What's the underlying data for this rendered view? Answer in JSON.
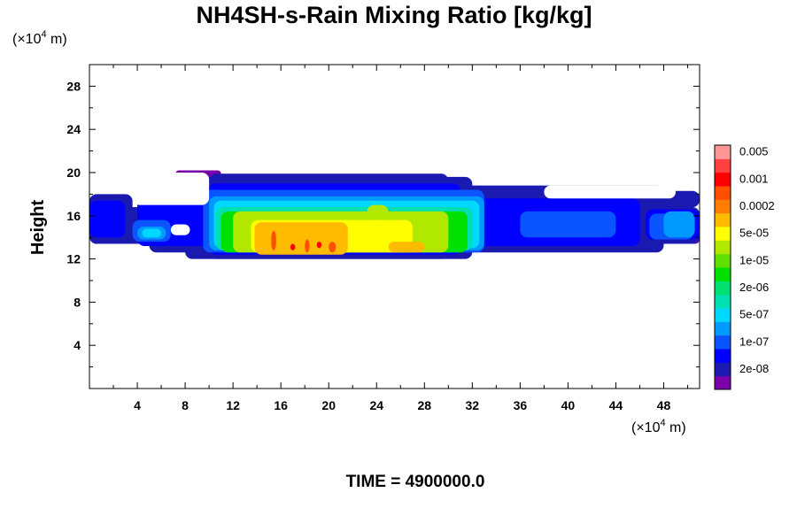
{
  "chart_data": {
    "type": "heatmap",
    "title": "NH4SH-s-Rain Mixing Ratio [kg/kg]",
    "ylabel": "Height",
    "x_unit": {
      "prefix": "(×10",
      "exponent": "4",
      "suffix": " m)"
    },
    "y_unit": {
      "prefix": "(×10",
      "exponent": "4",
      "suffix": " m)"
    },
    "xlim": [
      0,
      51
    ],
    "ylim": [
      0,
      30
    ],
    "x_ticks": [
      4,
      8,
      12,
      16,
      20,
      24,
      28,
      32,
      36,
      40,
      44,
      48
    ],
    "y_ticks": [
      4,
      8,
      12,
      16,
      20,
      24,
      28
    ],
    "time_label": "TIME = 4900000.0",
    "colorbar": {
      "colors": [
        "#7a00a8",
        "#1a1ab0",
        "#0000ff",
        "#0a55ff",
        "#009aff",
        "#00d8ff",
        "#00e0b0",
        "#00e070",
        "#00e000",
        "#60e000",
        "#b0e800",
        "#ffff00",
        "#ffbb00",
        "#ff7d00",
        "#ff5000",
        "#ff0000",
        "#ff4040",
        "#ff9696"
      ],
      "labels": [
        {
          "text": "2e-08",
          "level": 1
        },
        {
          "text": "1e-07",
          "level": 3
        },
        {
          "text": "5e-07",
          "level": 5
        },
        {
          "text": "2e-06",
          "level": 7
        },
        {
          "text": "1e-05",
          "level": 9
        },
        {
          "text": "5e-05",
          "level": 11
        },
        {
          "text": "0.0002",
          "level": 13
        },
        {
          "text": "0.001",
          "level": 15
        },
        {
          "text": "0.005",
          "level": 17
        }
      ]
    },
    "field": {
      "layers": [
        {
          "name": "purple-fringe",
          "level": 0,
          "regions": [
            {
              "x": [
                13.4,
                51
              ],
              "y": [
                13.4,
                14.2
              ]
            },
            {
              "x": [
                7.2,
                11.0
              ],
              "y": [
                19.6,
                20.2
              ]
            },
            {
              "x": [
                39.5,
                45.0
              ],
              "y": [
                14.0,
                16.5
              ]
            },
            {
              "x": [
                47.0,
                49.0
              ],
              "y": [
                17.3,
                18.0
              ]
            }
          ]
        },
        {
          "name": "dark-blue-envelope",
          "level": 1,
          "regions": [
            {
              "x": [
                0,
                3.6
              ],
              "y": [
                13.4,
                18.0
              ]
            },
            {
              "x": [
                0,
                51
              ],
              "y": [
                13.4,
                16.8
              ]
            },
            {
              "x": [
                5.0,
                48.0
              ],
              "y": [
                12.6,
                18.8
              ]
            },
            {
              "x": [
                8.0,
                32.0
              ],
              "y": [
                12.0,
                19.6
              ]
            },
            {
              "x": [
                10.0,
                30.0
              ],
              "y": [
                12.0,
                19.9
              ]
            },
            {
              "x": [
                37.0,
                51
              ],
              "y": [
                16.8,
                18.3
              ]
            }
          ]
        },
        {
          "name": "blue",
          "level": 2,
          "regions": [
            {
              "x": [
                0,
                3.0
              ],
              "y": [
                14.0,
                17.4
              ]
            },
            {
              "x": [
                4.0,
                46.0
              ],
              "y": [
                13.2,
                17.6
              ]
            },
            {
              "x": [
                10.0,
                31.0
              ],
              "y": [
                12.4,
                19.0
              ]
            },
            {
              "x": [
                46.5,
                51
              ],
              "y": [
                13.8,
                16.6
              ]
            }
          ]
        },
        {
          "name": "mid-blue",
          "level": 3,
          "regions": [
            {
              "x": [
                9.5,
                33.0
              ],
              "y": [
                12.6,
                18.4
              ]
            },
            {
              "x": [
                36.0,
                44.0
              ],
              "y": [
                14.0,
                16.4
              ]
            },
            {
              "x": [
                3.6,
                6.8
              ],
              "y": [
                13.6,
                15.6
              ]
            },
            {
              "x": [
                46.8,
                50.5
              ],
              "y": [
                13.8,
                16.2
              ]
            }
          ]
        },
        {
          "name": "sky-blue",
          "level": 4,
          "regions": [
            {
              "x": [
                10.0,
                33.0
              ],
              "y": [
                12.8,
                17.8
              ]
            },
            {
              "x": [
                4.0,
                6.4
              ],
              "y": [
                13.8,
                15.0
              ]
            },
            {
              "x": [
                48.0,
                50.6
              ],
              "y": [
                14.0,
                16.4
              ]
            }
          ]
        },
        {
          "name": "cyan",
          "level": 5,
          "regions": [
            {
              "x": [
                10.4,
                32.6
              ],
              "y": [
                13.0,
                17.4
              ]
            },
            {
              "x": [
                4.4,
                6.0
              ],
              "y": [
                14.0,
                14.8
              ]
            }
          ]
        },
        {
          "name": "aqua-green",
          "level": 6,
          "regions": [
            {
              "x": [
                10.6,
                32.0
              ],
              "y": [
                12.8,
                16.8
              ]
            }
          ]
        },
        {
          "name": "green",
          "level": 8,
          "regions": [
            {
              "x": [
                11.0,
                31.6
              ],
              "y": [
                12.6,
                16.4
              ]
            }
          ]
        },
        {
          "name": "yellow-green",
          "level": 10,
          "regions": [
            {
              "x": [
                12.0,
                30.0
              ],
              "y": [
                12.6,
                16.4
              ]
            },
            {
              "x": [
                23.2,
                25.0
              ],
              "y": [
                14.0,
                17.0
              ]
            }
          ]
        },
        {
          "name": "yellow",
          "level": 11,
          "regions": [
            {
              "x": [
                13.5,
                27.0
              ],
              "y": [
                12.6,
                15.6
              ]
            },
            {
              "x": [
                23.6,
                24.8
              ],
              "y": [
                14.4,
                15.6
              ]
            }
          ]
        },
        {
          "name": "orange",
          "level": 12,
          "regions": [
            {
              "x": [
                13.8,
                21.6
              ],
              "y": [
                12.4,
                15.4
              ]
            },
            {
              "x": [
                25.0,
                28.0
              ],
              "y": [
                12.6,
                13.6
              ]
            }
          ]
        },
        {
          "name": "red-orange",
          "level": 14,
          "regions": [
            {
              "x": [
                15.2,
                15.6
              ],
              "y": [
                12.8,
                14.6
              ]
            },
            {
              "x": [
                18.0,
                18.4
              ],
              "y": [
                12.6,
                13.8
              ]
            },
            {
              "x": [
                20.0,
                20.6
              ],
              "y": [
                12.6,
                13.6
              ]
            }
          ]
        },
        {
          "name": "red",
          "level": 15,
          "regions": [
            {
              "x": [
                16.8,
                17.2
              ],
              "y": [
                12.8,
                13.4
              ]
            },
            {
              "x": [
                19.0,
                19.4
              ],
              "y": [
                13.0,
                13.6
              ]
            }
          ]
        },
        {
          "name": "gap-left",
          "level": -1,
          "regions": [
            {
              "x": [
                3.6,
                10.0
              ],
              "y": [
                17.0,
                20.0
              ]
            },
            {
              "x": [
                6.8,
                8.4
              ],
              "y": [
                14.2,
                15.2
              ]
            }
          ]
        },
        {
          "name": "gap-right",
          "level": -1,
          "regions": [
            {
              "x": [
                38.0,
                49.0
              ],
              "y": [
                17.6,
                18.8
              ]
            }
          ]
        }
      ]
    }
  }
}
